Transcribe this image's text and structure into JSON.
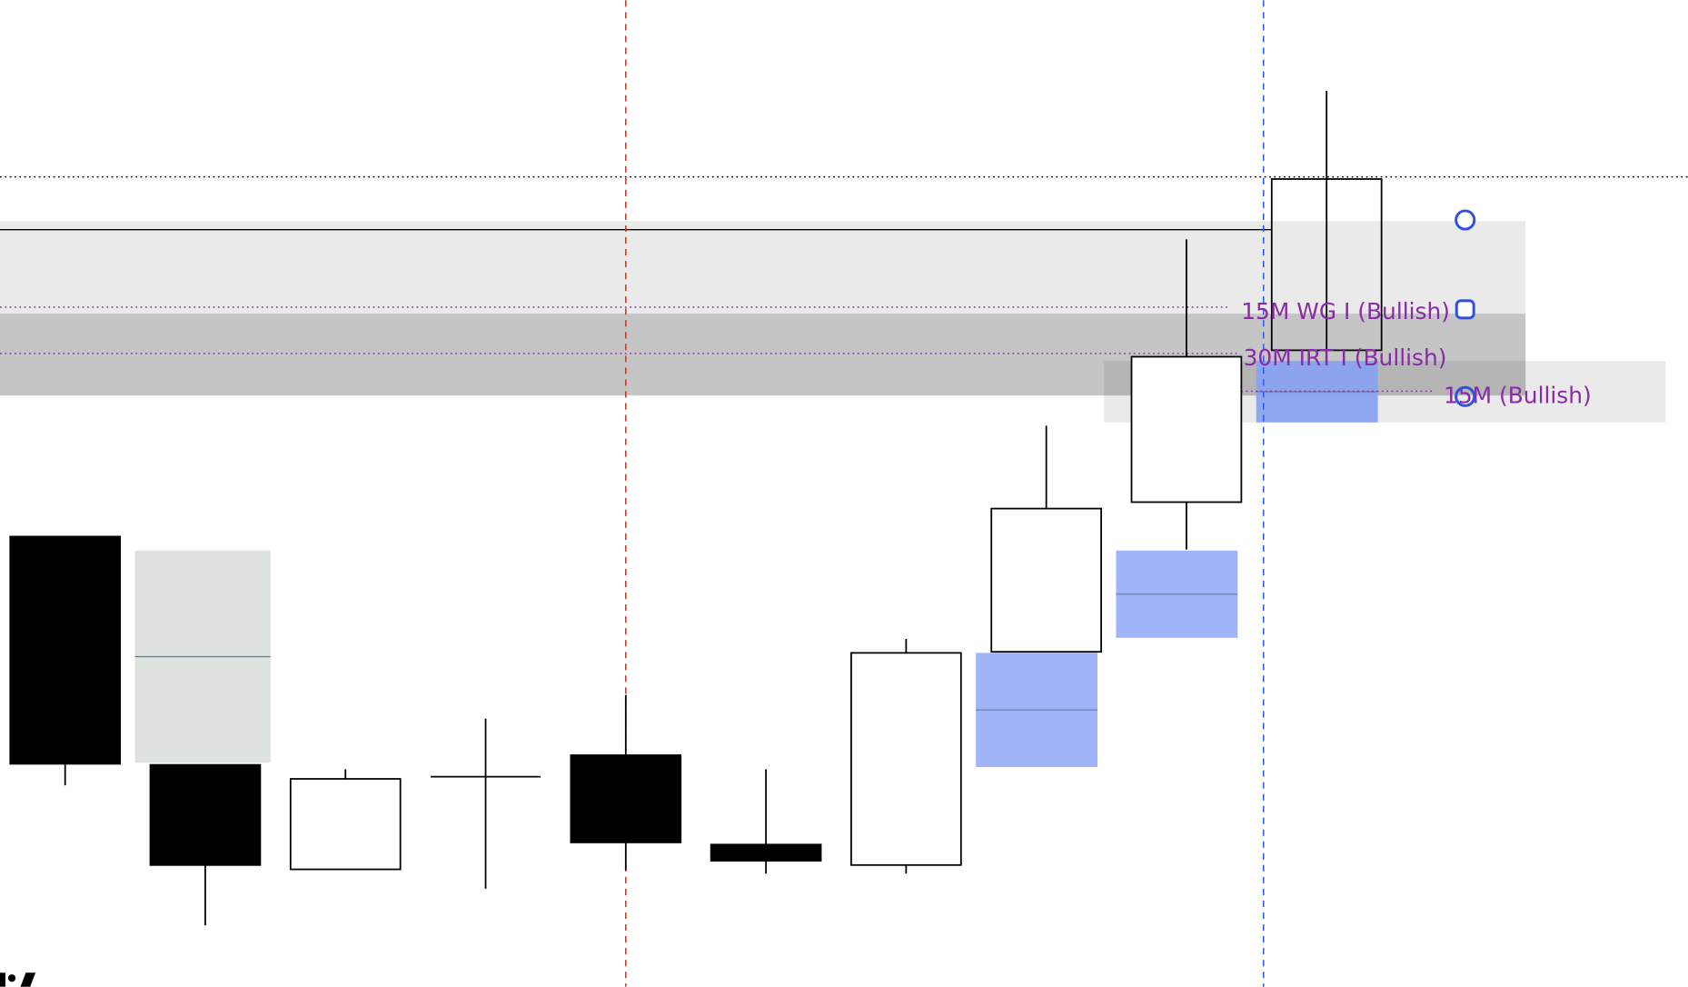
{
  "chart_data": {
    "type": "candlestick",
    "title": "",
    "xlabel": "",
    "ylabel": "",
    "grid": false,
    "candles": [
      {
        "open": 42.2,
        "high": 42.2,
        "low": 19.1,
        "close": 21.1
      },
      {
        "open": 21.0,
        "high": 21.0,
        "low": 6.1,
        "close": 11.7
      },
      {
        "open": 11.3,
        "high": 20.6,
        "low": 11.3,
        "close": 19.7
      },
      {
        "open": 19.9,
        "high": 25.3,
        "low": 9.5,
        "close": 19.9
      },
      {
        "open": 21.9,
        "high": 27.5,
        "low": 11.2,
        "close": 13.8
      },
      {
        "open": 13.6,
        "high": 20.6,
        "low": 10.9,
        "close": 12.1
      },
      {
        "open": 11.7,
        "high": 32.7,
        "low": 10.9,
        "close": 31.4
      },
      {
        "open": 31.5,
        "high": 52.5,
        "low": 31.5,
        "close": 44.8
      },
      {
        "open": 45.4,
        "high": 69.8,
        "low": 41.0,
        "close": 58.9
      },
      {
        "open": 59.5,
        "high": 83.6,
        "low": 59.5,
        "close": 75.4
      }
    ],
    "zones": [
      {
        "top": 71.5,
        "bottom": 55.3,
        "from": 0,
        "to": 10.5,
        "color": "#e6e6e6"
      },
      {
        "top": 62.9,
        "bottom": 55.3,
        "from": 0,
        "to": 10.5,
        "color": "#d0d0d0"
      },
      {
        "top": 58.5,
        "bottom": 52.8,
        "from": 7.5,
        "to": 11.5,
        "color": "#e6e6e6"
      }
    ],
    "fvgs": [
      {
        "top": 40.9,
        "bottom": 21.2,
        "from": 0.5,
        "to": 1.4,
        "color": "#dce0dc"
      },
      {
        "top": 31.4,
        "bottom": 20.8,
        "from": 6.5,
        "to": 7.3,
        "color": "#9bb0f8"
      },
      {
        "top": 40.9,
        "bottom": 32.8,
        "from": 7.5,
        "to": 8.3,
        "color": "#9bb0f8"
      },
      {
        "top": 58.5,
        "bottom": 52.8,
        "from": 8.5,
        "to": 9.3,
        "color": "#8aa3f0"
      }
    ],
    "levels": [
      {
        "price": 75.6,
        "style": "dotted",
        "color": "#000000"
      },
      {
        "price": 70.7,
        "style": "solid",
        "color": "#000000"
      },
      {
        "price": 63.5,
        "style": "dotted",
        "color": "#8a2aa8",
        "label": "15M WG I (Bullish)"
      },
      {
        "price": 59.2,
        "style": "dotted",
        "color": "#8a2aa8",
        "label": "30M IRT I (Bullish)"
      },
      {
        "price": 55.7,
        "style": "dotted",
        "color": "#8a2aa8",
        "label": "15M (Bullish)"
      }
    ],
    "vertical_markers": [
      {
        "candle": 4,
        "color": "#c0392b",
        "style": "dashed"
      },
      {
        "candle": 8.5,
        "color": "#2f5cf0",
        "style": "dashed"
      }
    ],
    "handle_color": "#2f4fe0",
    "up_color": "#ffffff",
    "down_color": "#000000"
  },
  "logo": "TV"
}
